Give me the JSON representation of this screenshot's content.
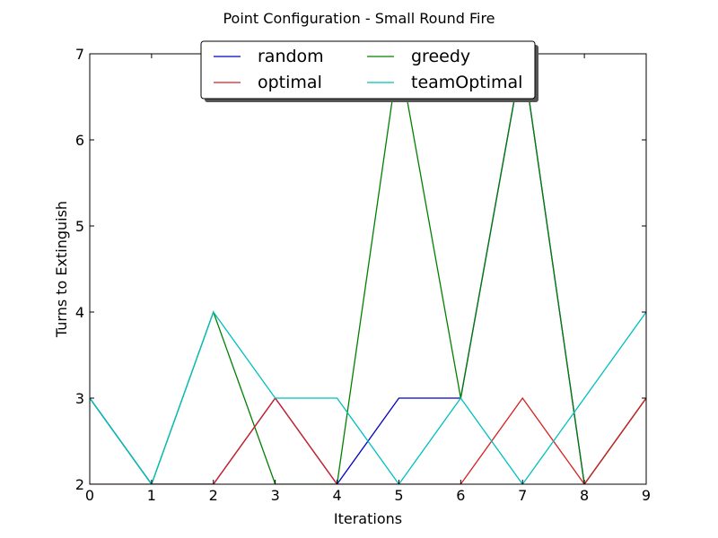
{
  "chart_data": {
    "type": "line",
    "title": "Point Configuration - Small Round Fire",
    "xlabel": "Iterations",
    "ylabel": "Turns to Extinguish",
    "xlim": [
      0,
      9
    ],
    "ylim": [
      2,
      7
    ],
    "x": [
      0,
      1,
      2,
      3,
      4,
      5,
      6,
      7,
      8,
      9
    ],
    "x_ticks": [
      "0",
      "1",
      "2",
      "3",
      "4",
      "5",
      "6",
      "7",
      "8",
      "9"
    ],
    "y_ticks": [
      "2",
      "3",
      "4",
      "5",
      "6",
      "7"
    ],
    "grid": false,
    "legend_position": "top-center",
    "legend_columns": 2,
    "series": [
      {
        "name": "random",
        "color": "#0000bf",
        "values": [
          3,
          2,
          2,
          3,
          2,
          3,
          3,
          7,
          2,
          3
        ]
      },
      {
        "name": "greedy",
        "color": "#008000",
        "values": [
          3,
          2,
          4,
          2,
          2,
          7,
          3,
          7,
          2,
          3
        ]
      },
      {
        "name": "optimal",
        "color": "#d62020",
        "values": [
          2,
          2,
          2,
          3,
          2,
          2,
          2,
          3,
          2,
          3
        ]
      },
      {
        "name": "teamOptimal",
        "color": "#00bfbf",
        "values": [
          3,
          2,
          4,
          3,
          3,
          2,
          3,
          2,
          3,
          4
        ]
      }
    ]
  }
}
